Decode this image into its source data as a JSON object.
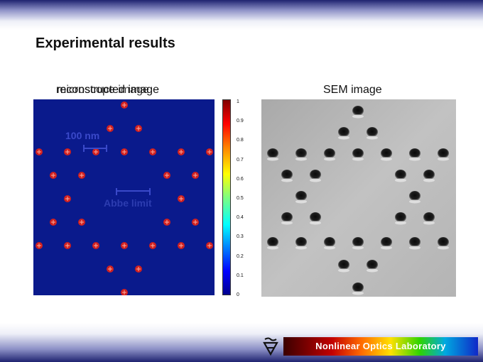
{
  "slide": {
    "title": "Experimental results"
  },
  "left_panel": {
    "label_reconstructed": "reconstructed image",
    "label_microscope": "microscope image",
    "scalebar_label_1": "100 nm",
    "scalebar_label_2": "Abbe limit"
  },
  "right_panel": {
    "label": "SEM image"
  },
  "colorbar": {
    "ticks": [
      "1",
      "0.9",
      "0.8",
      "0.7",
      "0.6",
      "0.5",
      "0.4",
      "0.3",
      "0.2",
      "0.1",
      "0"
    ]
  },
  "footer": {
    "lab_name": "Nonlinear Optics Laboratory",
    "logo_icon": "technion-logo-icon"
  },
  "colors": {
    "plot_bg": "#0a1a8c",
    "marker": "#d02020",
    "annotation": "#3a49c9"
  }
}
